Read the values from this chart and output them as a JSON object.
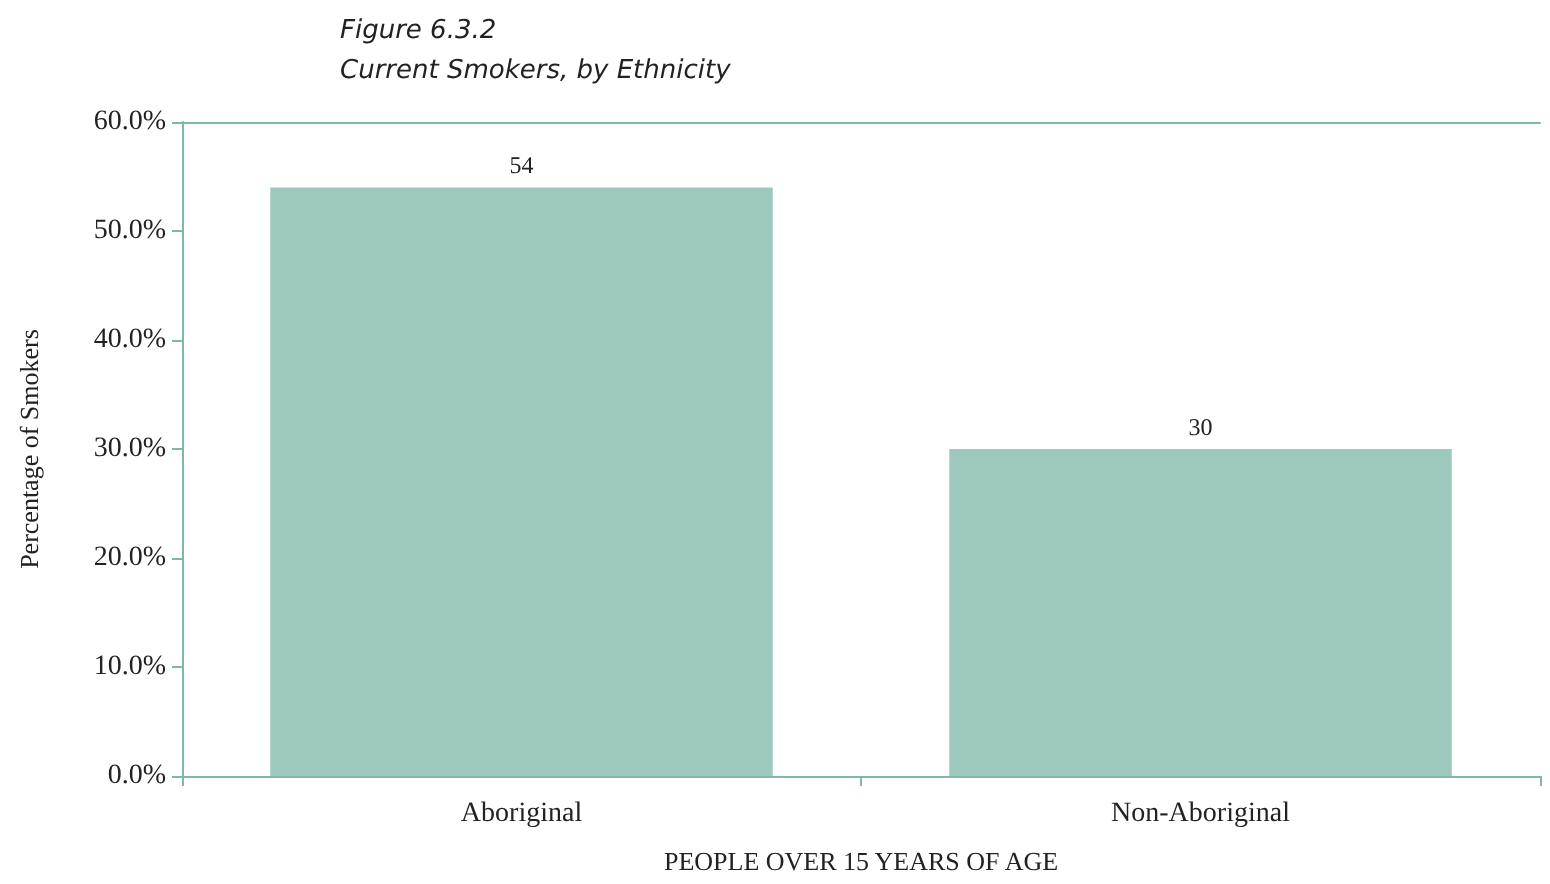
{
  "chart_data": {
    "type": "bar",
    "title": "Figure 6.3.2",
    "subtitle": "Current Smokers, by Ethnicity",
    "xlabel": "PEOPLE OVER 15 YEARS OF AGE",
    "ylabel": "Percentage of Smokers",
    "categories": [
      "Aboriginal",
      "Non-Aboriginal"
    ],
    "values": [
      54,
      30
    ],
    "color": "#9cc8bd",
    "ylim": [
      0,
      60
    ],
    "yticks": [
      {
        "value": 0,
        "label": "0.0%"
      },
      {
        "value": 10,
        "label": "10.0%"
      },
      {
        "value": 20,
        "label": "20.0%"
      },
      {
        "value": 30,
        "label": "30.0%"
      },
      {
        "value": 40,
        "label": "40.0%"
      },
      {
        "value": 50,
        "label": "50.0%"
      },
      {
        "value": 60,
        "label": "60.0%"
      }
    ],
    "data_labels": true,
    "grid": false
  }
}
